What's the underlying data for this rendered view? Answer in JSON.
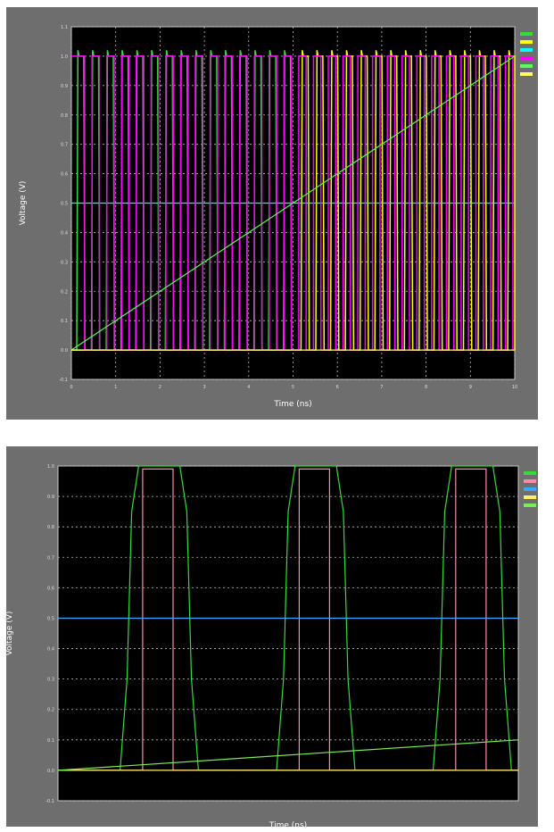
{
  "charts": [
    {
      "title": "",
      "xlabel": "Time (ns)",
      "ylabel": "Voltage (V)"
    },
    {
      "title": "",
      "xlabel": "Time (ns)",
      "ylabel": "Voltage (V)"
    }
  ],
  "chart_data": [
    {
      "type": "line",
      "title": "",
      "xlabel": "Time (ns)",
      "ylabel": "Voltage (V)",
      "xlim": [
        0,
        10
      ],
      "ylim": [
        -0.1,
        1.1
      ],
      "xticks": [
        0,
        1,
        2,
        3,
        4,
        5,
        6,
        7,
        8,
        9,
        10
      ],
      "yticks": [
        -0.1,
        0.0,
        0.1,
        0.2,
        0.3,
        0.4,
        0.5,
        0.6,
        0.7,
        0.8,
        0.9,
        1.0,
        1.1
      ],
      "grid": true,
      "legend": "right",
      "background": "#000000",
      "series": [
        {
          "color": "#33dd33",
          "kind": "pulse_train",
          "t_start": 0.12,
          "period": 0.333,
          "high_width": 0.16,
          "t_end": 5.0,
          "low": 0.0,
          "high": 1.0,
          "overshoot": 1.02
        },
        {
          "color": "#ffff00",
          "kind": "pulse_train",
          "t_start": 5.18,
          "period": 0.333,
          "high_width": 0.16,
          "t_end": 10.0,
          "low": 0.0,
          "high": 1.0,
          "overshoot": 1.02
        },
        {
          "color": "#00ffff",
          "kind": "constant",
          "x": [
            0,
            10
          ],
          "y": [
            0.5,
            0.5
          ]
        },
        {
          "color": "#ff00ff",
          "kind": "square",
          "period": 0.333,
          "t_start": 0.3,
          "duty": 0.5,
          "low": 0.0,
          "high": 1.0
        },
        {
          "color": "#55ff55",
          "kind": "ramp",
          "x": [
            0,
            10
          ],
          "y": [
            0.0,
            1.0
          ]
        },
        {
          "color": "#ffff66",
          "kind": "constant",
          "x": [
            0,
            10
          ],
          "y": [
            0.0,
            0.0
          ]
        }
      ]
    },
    {
      "type": "line",
      "title": "",
      "xlabel": "Time (ns)",
      "ylabel": "Voltage (V)",
      "xlim": [
        0.5,
        1.0
      ],
      "ylim": [
        -0.1,
        1.0
      ],
      "yticks": [
        -0.1,
        0.0,
        0.1,
        0.2,
        0.3,
        0.4,
        0.5,
        0.6,
        0.7,
        0.8,
        0.9,
        1.0
      ],
      "grid": true,
      "legend": "right",
      "background": "#000000",
      "series": [
        {
          "color": "#33dd33",
          "kind": "pulses",
          "rise": [
            0.575,
            0.745,
            0.915
          ],
          "fall": [
            0.645,
            0.815,
            0.985
          ],
          "high": 1.0
        },
        {
          "color": "#ff88aa",
          "kind": "pulses",
          "rise": [
            0.592,
            0.762,
            0.932
          ],
          "fall": [
            0.625,
            0.795,
            0.965
          ],
          "high": 0.99
        },
        {
          "color": "#33aaff",
          "kind": "constant",
          "x": [
            0.5,
            1.0
          ],
          "y": [
            0.5,
            0.5
          ]
        },
        {
          "color": "#ffee66",
          "kind": "constant",
          "x": [
            0.5,
            1.0
          ],
          "y": [
            0.0,
            0.0
          ]
        },
        {
          "color": "#77ee55",
          "kind": "ramp",
          "x": [
            0.5,
            1.0
          ],
          "y": [
            0.0,
            0.1
          ]
        }
      ]
    }
  ]
}
